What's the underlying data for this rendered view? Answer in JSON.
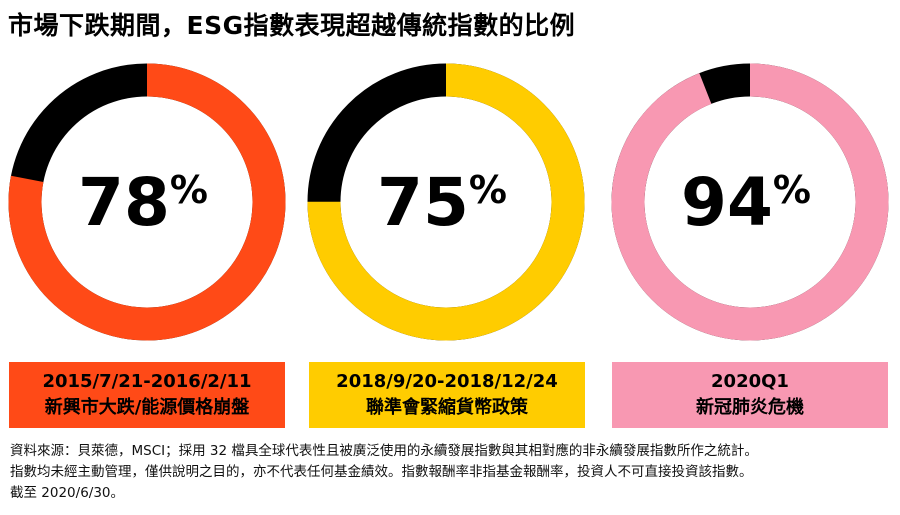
{
  "title": "市場下跌期間，ESG指數表現超越傳統指數的比例",
  "colors": {
    "remainder": "#000000",
    "series": [
      "#FF4A17",
      "#FFCC00",
      "#F898B2"
    ]
  },
  "chart_data": [
    {
      "type": "pie",
      "value": 78,
      "value_label": "78",
      "unit": "%",
      "period": "2015/7/21-2016/2/11",
      "event": "新興市大跌/能源價格崩盤"
    },
    {
      "type": "pie",
      "value": 75,
      "value_label": "75",
      "unit": "%",
      "period": "2018/9/20-2018/12/24",
      "event": "聯準會緊縮貨幣政策"
    },
    {
      "type": "pie",
      "value": 94,
      "value_label": "94",
      "unit": "%",
      "period": "2020Q1",
      "event": "新冠肺炎危機"
    }
  ],
  "footnote": {
    "line1": "資料來源：貝萊德，MSCI；採用 32 檔具全球代表性且被廣泛使用的永續發展指數與其相對應的非永續發展指數所作之統計。",
    "line2": "指數均未經主動管理，僅供說明之目的，亦不代表任何基金績效。指數報酬率非指基金報酬率，投資人不可直接投資該指數。",
    "line3": "截至 2020/6/30。"
  }
}
